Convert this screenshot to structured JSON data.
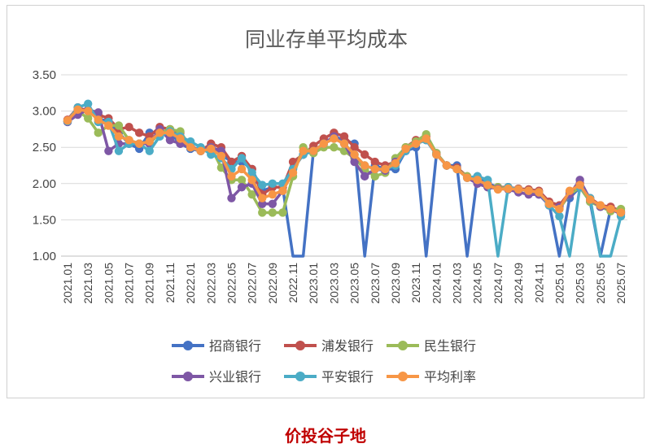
{
  "chart_data": {
    "type": "line",
    "title": "同业存单平均成本",
    "ylim": [
      1.0,
      3.5
    ],
    "yticks": [
      "3.50",
      "3.00",
      "2.50",
      "2.00",
      "1.50",
      "1.00"
    ],
    "ytick_values": [
      3.5,
      3.0,
      2.5,
      2.0,
      1.5,
      1.0
    ],
    "xtick_labels": [
      "2021.01",
      "2021.03",
      "2021.05",
      "2021.07",
      "2021.09",
      "2021.11",
      "2022.01",
      "2022.03",
      "2022.05",
      "2022.07",
      "2022.09",
      "2022.11",
      "2023.01",
      "2023.03",
      "2023.05",
      "2023.07",
      "2023.09",
      "2023.11",
      "2024.01",
      "2024.03",
      "2024.05",
      "2024.07",
      "2024.09",
      "2024.11",
      "2025.01",
      "2025.03",
      "2025.05",
      "2025.07"
    ],
    "x": [
      "2021.01",
      "2021.02",
      "2021.03",
      "2021.04",
      "2021.05",
      "2021.06",
      "2021.07",
      "2021.08",
      "2021.09",
      "2021.10",
      "2021.11",
      "2021.12",
      "2022.01",
      "2022.02",
      "2022.03",
      "2022.04",
      "2022.05",
      "2022.06",
      "2022.07",
      "2022.08",
      "2022.09",
      "2022.10",
      "2022.11",
      "2022.12",
      "2023.01",
      "2023.02",
      "2023.03",
      "2023.04",
      "2023.05",
      "2023.06",
      "2023.07",
      "2023.08",
      "2023.09",
      "2023.10",
      "2023.11",
      "2023.12",
      "2024.01",
      "2024.02",
      "2024.03",
      "2024.04",
      "2024.05",
      "2024.06",
      "2024.07",
      "2024.08",
      "2024.09",
      "2024.10",
      "2024.11",
      "2024.12",
      "2025.01",
      "2025.02",
      "2025.03",
      "2025.04",
      "2025.05",
      "2025.06",
      "2025.07"
    ],
    "grid": true,
    "legend_position": "bottom",
    "series": [
      {
        "name": "招商银行",
        "color": "#4472c4",
        "values": [
          2.85,
          3.02,
          3.0,
          2.9,
          2.85,
          2.7,
          2.55,
          2.48,
          2.7,
          2.7,
          2.7,
          2.55,
          2.48,
          2.45,
          2.48,
          2.4,
          2.3,
          2.3,
          2.2,
          1.9,
          1.95,
          1.95,
          0,
          0,
          2.45,
          2.55,
          2.65,
          2.6,
          2.55,
          0,
          2.25,
          2.2,
          2.2,
          2.45,
          2.5,
          0,
          2.4,
          2.25,
          2.25,
          0,
          2.1,
          2.0,
          1.95,
          1.95,
          1.92,
          1.9,
          1.85,
          1.72,
          0,
          1.8,
          1.95,
          1.75,
          0,
          1.65,
          1.6
        ]
      },
      {
        "name": "浦发银行",
        "color": "#c0504d",
        "values": [
          2.88,
          3.05,
          3.0,
          2.95,
          2.9,
          2.75,
          2.78,
          2.7,
          2.65,
          2.78,
          2.75,
          2.7,
          2.52,
          2.45,
          2.55,
          2.5,
          2.3,
          2.38,
          2.2,
          1.85,
          1.95,
          1.95,
          2.3,
          2.4,
          2.52,
          2.62,
          2.7,
          2.65,
          2.5,
          2.4,
          2.3,
          2.25,
          2.3,
          2.5,
          2.6,
          2.65,
          2.42,
          2.25,
          2.22,
          2.1,
          2.0,
          1.97,
          1.95,
          1.95,
          1.93,
          1.92,
          1.9,
          1.75,
          1.7,
          1.88,
          2.0,
          1.8,
          1.7,
          1.68,
          1.62
        ]
      },
      {
        "name": "民生银行",
        "color": "#9bbb59",
        "values": [
          2.86,
          3.0,
          2.9,
          2.7,
          2.8,
          2.8,
          2.6,
          2.55,
          2.55,
          2.7,
          2.75,
          2.72,
          2.5,
          2.45,
          2.5,
          2.22,
          2.05,
          2.05,
          1.85,
          1.6,
          1.6,
          1.6,
          2.1,
          2.5,
          2.42,
          2.5,
          2.5,
          2.45,
          2.35,
          2.2,
          2.1,
          2.15,
          2.35,
          2.5,
          2.58,
          2.68,
          2.42,
          2.25,
          2.2,
          2.1,
          2.05,
          1.95,
          1.95,
          1.93,
          1.92,
          1.9,
          1.88,
          1.72,
          1.65,
          1.85,
          1.95,
          1.75,
          1.68,
          1.62,
          1.65
        ]
      },
      {
        "name": "兴业银行",
        "color": "#7e57a5",
        "values": [
          2.85,
          2.95,
          3.02,
          2.98,
          2.45,
          2.55,
          2.55,
          2.55,
          2.55,
          2.75,
          2.6,
          2.55,
          2.5,
          2.45,
          2.5,
          2.45,
          1.8,
          1.95,
          2.0,
          1.72,
          1.72,
          1.9,
          2.2,
          2.4,
          2.45,
          2.55,
          2.65,
          2.55,
          2.3,
          2.1,
          2.2,
          2.18,
          2.3,
          2.45,
          2.55,
          2.6,
          2.4,
          2.25,
          2.2,
          2.08,
          2.0,
          1.95,
          1.93,
          1.92,
          1.88,
          1.85,
          1.85,
          1.7,
          1.68,
          1.85,
          2.05,
          1.78,
          1.68,
          1.65,
          1.58
        ]
      },
      {
        "name": "平安银行",
        "color": "#4bacc6",
        "values": [
          2.86,
          3.05,
          3.1,
          2.85,
          2.85,
          2.45,
          2.55,
          2.55,
          2.45,
          2.65,
          2.72,
          2.65,
          2.58,
          2.5,
          2.4,
          2.35,
          2.2,
          2.35,
          2.15,
          1.98,
          2.0,
          2.0,
          2.2,
          2.4,
          2.45,
          2.55,
          2.62,
          2.55,
          2.4,
          2.25,
          2.2,
          2.2,
          2.25,
          2.45,
          2.55,
          2.6,
          2.4,
          2.25,
          2.2,
          2.08,
          2.1,
          2.05,
          1.0,
          1.95,
          1.92,
          1.9,
          1.88,
          1.7,
          1.55,
          1.0,
          1.95,
          1.8,
          1.0,
          1.0,
          1.55
        ]
      },
      {
        "name": "平均利率",
        "color": "#f79646",
        "values": [
          2.87,
          3.02,
          3.0,
          2.88,
          2.8,
          2.65,
          2.6,
          2.55,
          2.58,
          2.7,
          2.7,
          2.62,
          2.5,
          2.45,
          2.48,
          2.38,
          2.1,
          2.2,
          2.05,
          1.8,
          1.85,
          1.9,
          2.15,
          2.45,
          2.45,
          2.55,
          2.62,
          2.55,
          2.4,
          2.25,
          2.2,
          2.2,
          2.28,
          2.48,
          2.55,
          2.62,
          2.4,
          2.25,
          2.2,
          2.08,
          2.05,
          1.98,
          1.92,
          1.93,
          1.92,
          1.9,
          1.88,
          1.72,
          1.65,
          1.9,
          1.98,
          1.78,
          1.7,
          1.65,
          1.6
        ]
      }
    ]
  },
  "watermark": "价投谷子地"
}
